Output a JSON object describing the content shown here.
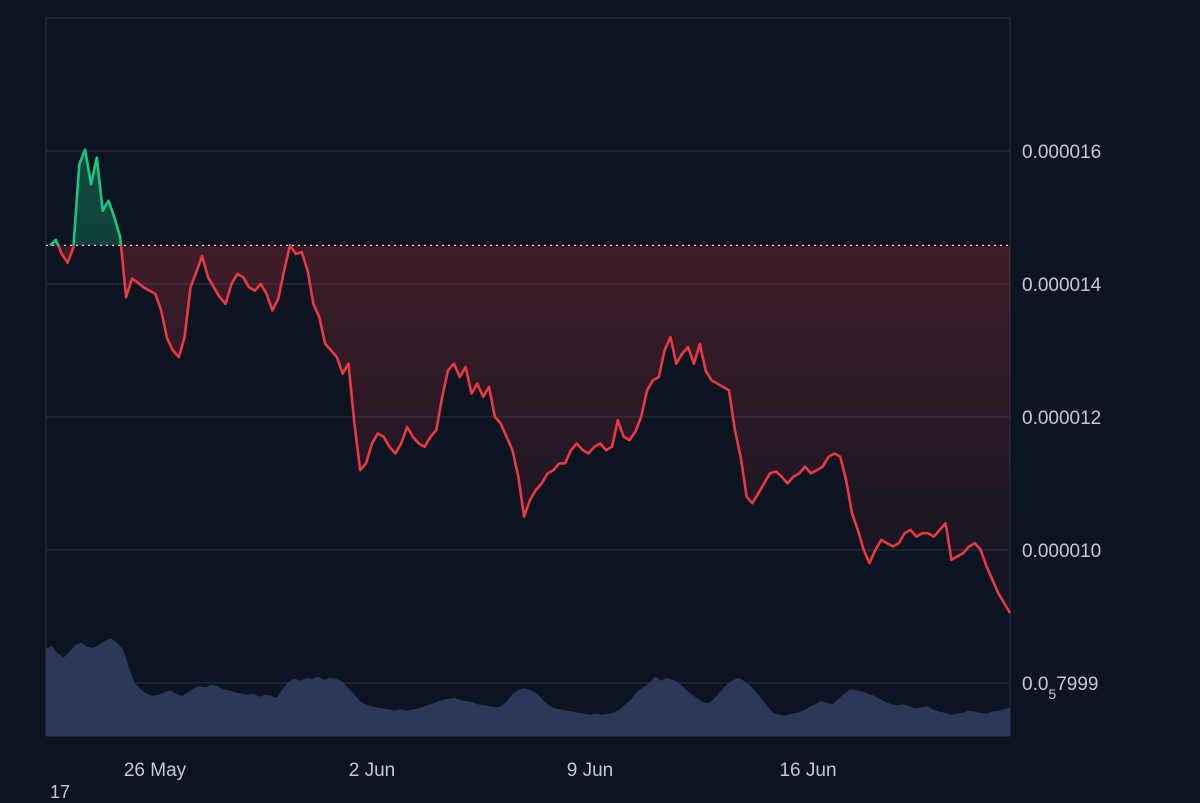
{
  "chart_data": {
    "type": "line",
    "title": "",
    "xlabel": "",
    "ylabel": "",
    "x_ticks": [
      "26 May",
      "2 Jun",
      "9 Jun",
      "16 Jun"
    ],
    "y_ticks": [
      {
        "label": "0.000016",
        "value": 1.6e-05
      },
      {
        "label": "0.000014",
        "value": 1.4e-05
      },
      {
        "label": "0.000012",
        "value": 1.2e-05
      },
      {
        "label": "0.000010",
        "value": 1e-05
      },
      {
        "label": "0.0",
        "sub": "5",
        "suffix": "7999",
        "value": 8e-06
      }
    ],
    "ylim": [
      7.2e-06,
      1.8e-05
    ],
    "reference_price": 1.458e-05,
    "grid": "horizontal",
    "colors": {
      "up": "#16c784",
      "down": "#ea3943",
      "volume": "#2d3a5c",
      "grid": "#2a3342",
      "reference": "#d9dce2"
    },
    "series": [
      {
        "values": [
          1.458e-05,
          1.466e-05,
          1.445e-05,
          1.432e-05,
          1.455e-05,
          1.58e-05,
          1.602e-05,
          1.55e-05,
          1.59e-05,
          1.51e-05,
          1.525e-05,
          1.5e-05,
          1.47e-05,
          1.38e-05,
          1.408e-05,
          1.402e-05,
          1.395e-05,
          1.39e-05,
          1.385e-05,
          1.36e-05,
          1.318e-05,
          1.3e-05,
          1.29e-05,
          1.32e-05,
          1.395e-05,
          1.418e-05,
          1.442e-05,
          1.41e-05,
          1.395e-05,
          1.38e-05,
          1.37e-05,
          1.4e-05,
          1.415e-05,
          1.41e-05,
          1.395e-05,
          1.39e-05,
          1.4e-05,
          1.385e-05,
          1.36e-05,
          1.378e-05,
          1.42e-05,
          1.458e-05,
          1.445e-05,
          1.448e-05,
          1.42e-05,
          1.37e-05,
          1.35e-05,
          1.31e-05,
          1.3e-05,
          1.29e-05,
          1.265e-05,
          1.28e-05,
          1.19e-05,
          1.12e-05,
          1.13e-05,
          1.16e-05,
          1.175e-05,
          1.17e-05,
          1.155e-05,
          1.145e-05,
          1.16e-05,
          1.185e-05,
          1.17e-05,
          1.16e-05,
          1.155e-05,
          1.17e-05,
          1.18e-05,
          1.23e-05,
          1.27e-05,
          1.28e-05,
          1.26e-05,
          1.275e-05,
          1.235e-05,
          1.25e-05,
          1.23e-05,
          1.245e-05,
          1.2e-05,
          1.19e-05,
          1.17e-05,
          1.15e-05,
          1.11e-05,
          1.05e-05,
          1.075e-05,
          1.09e-05,
          1.1e-05,
          1.115e-05,
          1.12e-05,
          1.13e-05,
          1.13e-05,
          1.15e-05,
          1.16e-05,
          1.15e-05,
          1.145e-05,
          1.155e-05,
          1.16e-05,
          1.15e-05,
          1.155e-05,
          1.195e-05,
          1.17e-05,
          1.165e-05,
          1.178e-05,
          1.2e-05,
          1.24e-05,
          1.255e-05,
          1.26e-05,
          1.3e-05,
          1.32e-05,
          1.28e-05,
          1.295e-05,
          1.305e-05,
          1.28e-05,
          1.31e-05,
          1.27e-05,
          1.255e-05,
          1.25e-05,
          1.245e-05,
          1.24e-05,
          1.18e-05,
          1.14e-05,
          1.08e-05,
          1.07e-05,
          1.085e-05,
          1.1e-05,
          1.115e-05,
          1.118e-05,
          1.11e-05,
          1.1e-05,
          1.11e-05,
          1.115e-05,
          1.125e-05,
          1.115e-05,
          1.12e-05,
          1.125e-05,
          1.14e-05,
          1.145e-05,
          1.14e-05,
          1.105e-05,
          1.055e-05,
          1.03e-05,
          1e-05,
          9.8e-06,
          1e-05,
          1.015e-05,
          1.01e-05,
          1.005e-05,
          1.01e-05,
          1.025e-05,
          1.03e-05,
          1.02e-05,
          1.025e-05,
          1.025e-05,
          1.02e-05,
          1.03e-05,
          1.04e-05,
          9.85e-06,
          9.9e-06,
          9.95e-06,
          1.005e-05,
          1.01e-05,
          1e-05,
          9.75e-06,
          9.55e-06,
          9.35e-06,
          9.2e-06,
          9.05e-06
        ]
      }
    ],
    "volume": [
      0.82,
      0.85,
      0.78,
      0.74,
      0.8,
      0.86,
      0.88,
      0.84,
      0.83,
      0.86,
      0.9,
      0.92,
      0.88,
      0.82,
      0.65,
      0.5,
      0.44,
      0.4,
      0.38,
      0.39,
      0.41,
      0.43,
      0.4,
      0.38,
      0.41,
      0.45,
      0.47,
      0.46,
      0.48,
      0.47,
      0.44,
      0.43,
      0.41,
      0.4,
      0.39,
      0.4,
      0.37,
      0.39,
      0.38,
      0.36,
      0.44,
      0.51,
      0.54,
      0.52,
      0.55,
      0.54,
      0.56,
      0.53,
      0.55,
      0.54,
      0.52,
      0.46,
      0.4,
      0.33,
      0.3,
      0.28,
      0.27,
      0.26,
      0.25,
      0.24,
      0.25,
      0.24,
      0.25,
      0.26,
      0.28,
      0.3,
      0.32,
      0.34,
      0.35,
      0.36,
      0.34,
      0.33,
      0.32,
      0.3,
      0.29,
      0.28,
      0.27,
      0.28,
      0.33,
      0.4,
      0.44,
      0.45,
      0.43,
      0.4,
      0.34,
      0.29,
      0.26,
      0.25,
      0.24,
      0.23,
      0.22,
      0.21,
      0.2,
      0.21,
      0.2,
      0.21,
      0.22,
      0.25,
      0.3,
      0.35,
      0.42,
      0.46,
      0.5,
      0.56,
      0.52,
      0.55,
      0.53,
      0.5,
      0.45,
      0.4,
      0.36,
      0.32,
      0.31,
      0.35,
      0.42,
      0.48,
      0.52,
      0.55,
      0.52,
      0.48,
      0.42,
      0.35,
      0.28,
      0.22,
      0.2,
      0.19,
      0.21,
      0.22,
      0.24,
      0.27,
      0.3,
      0.33,
      0.31,
      0.3,
      0.35,
      0.4,
      0.44,
      0.43,
      0.42,
      0.4,
      0.38,
      0.35,
      0.32,
      0.3,
      0.29,
      0.3,
      0.28,
      0.26,
      0.27,
      0.28,
      0.25,
      0.23,
      0.22,
      0.2,
      0.21,
      0.22,
      0.24,
      0.23,
      0.22,
      0.21,
      0.23,
      0.24,
      0.25,
      0.27
    ],
    "footer_text": "17"
  }
}
